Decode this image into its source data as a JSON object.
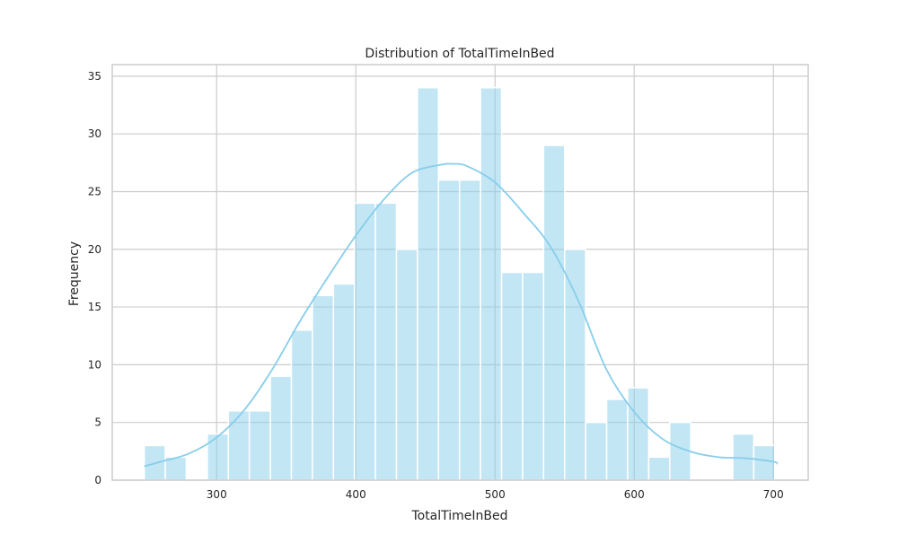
{
  "chart_data": {
    "type": "bar",
    "title": "Distribution of TotalTimeInBed",
    "xlabel": "TotalTimeInBed",
    "ylabel": "Frequency",
    "xlim": [
      225,
      725
    ],
    "ylim": [
      0,
      36
    ],
    "xticks": [
      300,
      400,
      500,
      600,
      700
    ],
    "yticks": [
      0,
      5,
      10,
      15,
      20,
      25,
      30,
      35
    ],
    "grid": true,
    "bin_start": 248,
    "bin_width": 15.1,
    "bins": [
      {
        "x_start": 248.0,
        "x_end": 263.1,
        "count": 3
      },
      {
        "x_start": 263.1,
        "x_end": 278.2,
        "count": 2
      },
      {
        "x_start": 278.2,
        "x_end": 293.3,
        "count": 0
      },
      {
        "x_start": 293.3,
        "x_end": 308.4,
        "count": 4
      },
      {
        "x_start": 308.4,
        "x_end": 323.5,
        "count": 6
      },
      {
        "x_start": 323.5,
        "x_end": 338.6,
        "count": 6
      },
      {
        "x_start": 338.6,
        "x_end": 353.7,
        "count": 9
      },
      {
        "x_start": 353.7,
        "x_end": 368.8,
        "count": 13
      },
      {
        "x_start": 368.8,
        "x_end": 383.9,
        "count": 16
      },
      {
        "x_start": 383.9,
        "x_end": 399.0,
        "count": 17
      },
      {
        "x_start": 399.0,
        "x_end": 414.1,
        "count": 24
      },
      {
        "x_start": 414.1,
        "x_end": 429.2,
        "count": 24
      },
      {
        "x_start": 429.2,
        "x_end": 444.3,
        "count": 20
      },
      {
        "x_start": 444.3,
        "x_end": 459.4,
        "count": 34
      },
      {
        "x_start": 459.4,
        "x_end": 474.5,
        "count": 26
      },
      {
        "x_start": 474.5,
        "x_end": 489.6,
        "count": 26
      },
      {
        "x_start": 489.6,
        "x_end": 504.7,
        "count": 34
      },
      {
        "x_start": 504.7,
        "x_end": 519.8,
        "count": 18
      },
      {
        "x_start": 519.8,
        "x_end": 534.9,
        "count": 18
      },
      {
        "x_start": 534.9,
        "x_end": 550.0,
        "count": 29
      },
      {
        "x_start": 550.0,
        "x_end": 565.1,
        "count": 20
      },
      {
        "x_start": 565.1,
        "x_end": 580.2,
        "count": 5
      },
      {
        "x_start": 580.2,
        "x_end": 595.3,
        "count": 7
      },
      {
        "x_start": 595.3,
        "x_end": 610.4,
        "count": 8
      },
      {
        "x_start": 610.4,
        "x_end": 625.5,
        "count": 2
      },
      {
        "x_start": 625.5,
        "x_end": 640.6,
        "count": 5
      },
      {
        "x_start": 640.6,
        "x_end": 655.7,
        "count": 0
      },
      {
        "x_start": 655.7,
        "x_end": 670.8,
        "count": 0
      },
      {
        "x_start": 670.8,
        "x_end": 685.9,
        "count": 4
      },
      {
        "x_start": 685.9,
        "x_end": 701.0,
        "count": 3
      }
    ],
    "kde": {
      "x": [
        248,
        260,
        280,
        300,
        320,
        340,
        360,
        380,
        400,
        420,
        440,
        460,
        470,
        480,
        500,
        520,
        540,
        560,
        580,
        600,
        620,
        640,
        660,
        680,
        700,
        703
      ],
      "y": [
        1.2,
        1.6,
        2.3,
        3.7,
        6.1,
        9.6,
        13.8,
        17.6,
        21.2,
        24.3,
        26.6,
        27.3,
        27.4,
        27.2,
        25.8,
        23.2,
        20.2,
        15.5,
        9.6,
        5.9,
        3.6,
        2.5,
        2.0,
        1.9,
        1.6,
        1.4
      ]
    },
    "colors": {
      "bar_fill": "#87ceeb",
      "bar_fill_opacity": 0.5,
      "kde_line": "#87ceeb",
      "grid": "#cccccc",
      "frame": "#cccccc"
    }
  }
}
